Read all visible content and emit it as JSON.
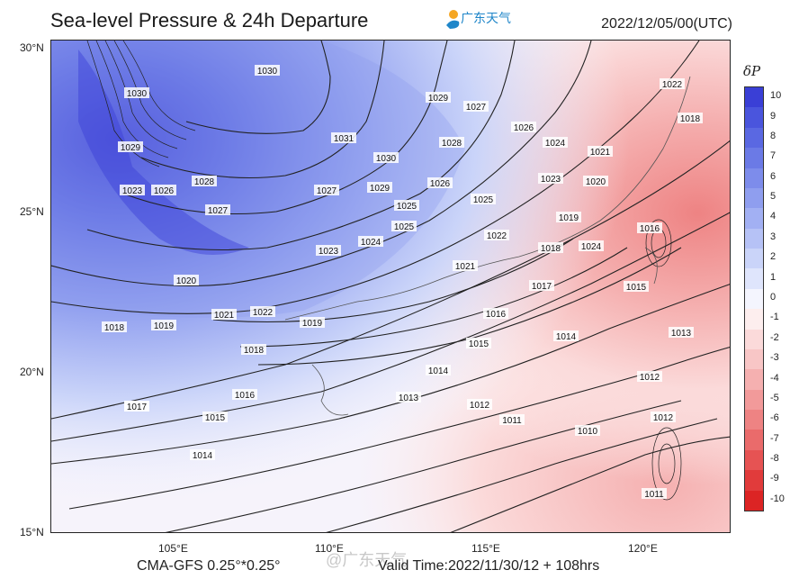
{
  "header": {
    "title": "Sea-level Pressure & 24h Departure",
    "logo_text": "广东天气",
    "datetime": "2022/12/05/00(UTC)"
  },
  "footer": {
    "model": "CMA-GFS  0.25°*0.25°",
    "valid_time": "Valid Time:2022/11/30/12 + 108hrs",
    "watermark": "@广东天气"
  },
  "axes": {
    "lat_labels": [
      "30°N",
      "25°N",
      "20°N",
      "15°N"
    ],
    "lon_labels": [
      "105°E",
      "110°E",
      "115°E",
      "120°E"
    ]
  },
  "colorbar": {
    "title": "δP",
    "labels": [
      "10",
      "9",
      "8",
      "7",
      "6",
      "5",
      "4",
      "3",
      "2",
      "1",
      "0",
      "-1",
      "-2",
      "-3",
      "-4",
      "-5",
      "-6",
      "-7",
      "-8",
      "-9",
      "-10"
    ],
    "colors": [
      "#3a3fd6",
      "#4a55dd",
      "#5a68e2",
      "#6b7ae6",
      "#7d8ceb",
      "#8f9eef",
      "#a2b0f3",
      "#b6c2f6",
      "#cad4f9",
      "#dfe5fc",
      "#f4f5fe",
      "#fdeeee",
      "#fbdada",
      "#f8c6c6",
      "#f5b0b0",
      "#f29a9a",
      "#ee8383",
      "#ea6b6b",
      "#e65353",
      "#e13b3b",
      "#dc2424"
    ]
  },
  "isobar_labels": [
    "1030",
    "1030",
    "1029",
    "1028",
    "1027",
    "1026",
    "1025",
    "1024",
    "1023",
    "1022",
    "1021",
    "1020",
    "1019",
    "1018",
    "1017",
    "1016",
    "1015",
    "1014",
    "1013",
    "1012",
    "1011",
    "1010"
  ],
  "map_labels": [
    "1030",
    "1030",
    "1031",
    "1030",
    "1029",
    "1027",
    "1026",
    "1024",
    "1022",
    "1018",
    "1029",
    "1023",
    "1026",
    "1028",
    "1027",
    "1029",
    "1028",
    "1026",
    "1025",
    "1023",
    "1021",
    "1020",
    "1019",
    "1027",
    "1024",
    "1025",
    "1023",
    "1024",
    "1025",
    "1022",
    "1021",
    "1018",
    "1016",
    "1015",
    "1020",
    "1021",
    "1022",
    "1018",
    "1019",
    "1019",
    "1017",
    "1016",
    "1015",
    "1014",
    "1013",
    "1018",
    "1017",
    "1016",
    "1014",
    "1013",
    "1012",
    "1011",
    "1010",
    "1012",
    "1012",
    "1017",
    "1015",
    "1014",
    "1011"
  ]
}
